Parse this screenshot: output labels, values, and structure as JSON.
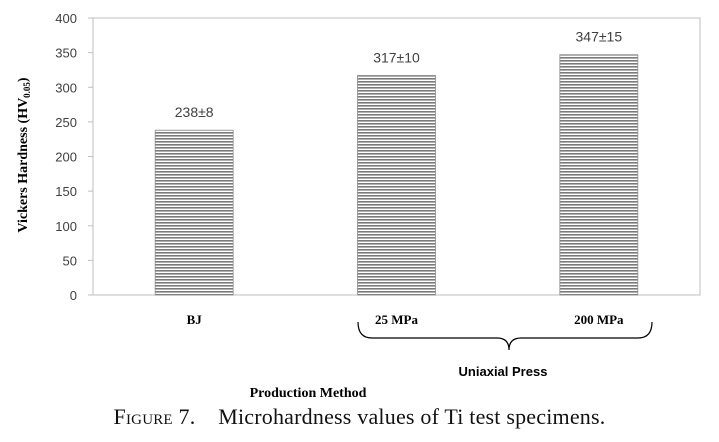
{
  "chart_data": {
    "type": "bar",
    "categories": [
      "BJ",
      "25 MPa",
      "200 MPa"
    ],
    "values": [
      238,
      317,
      347
    ],
    "data_labels": [
      "238±8",
      "317±10",
      "347±15"
    ],
    "ylabel_main": "Vickers Hardness (HV",
    "ylabel_sub": "0.05",
    "ylabel_close": ")",
    "xlabel": "Production Method",
    "group_label": "Uniaxial Press",
    "ylim": [
      0,
      400
    ],
    "yticks": [
      0,
      50,
      100,
      150,
      200,
      250,
      300,
      350,
      400
    ],
    "grid": false,
    "legend": "none",
    "bar_fill": "horizontal gray stripes"
  },
  "caption": {
    "label": "Figure 7.",
    "text": "Microhardness values of Ti test specimens."
  }
}
